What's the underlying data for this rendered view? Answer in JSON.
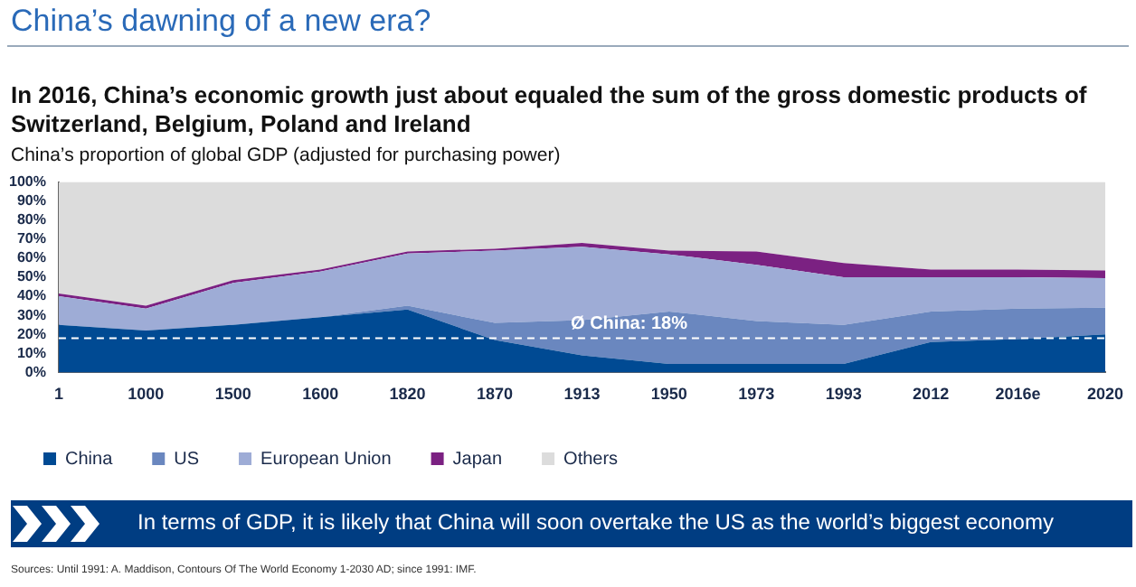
{
  "chart_data": {
    "type": "area",
    "title": "China’s dawning of a new era?",
    "subtitle": "In 2016, China’s economic growth just about equaled the sum of the gross domestic products of Switzerland, Belgium, Poland and Ireland",
    "ylabel": "China’s proportion of global GDP (adjusted for purchasing power)",
    "categories": [
      "1",
      "1000",
      "1500",
      "1600",
      "1820",
      "1870",
      "1913",
      "1950",
      "1973",
      "1993",
      "2012",
      "2016e",
      "2020"
    ],
    "stacked": true,
    "series": [
      {
        "name": "China",
        "color": "#004a93",
        "values": [
          25,
          22,
          25,
          29,
          33,
          17,
          9,
          4.5,
          4.5,
          4.5,
          16,
          17.5,
          20
        ]
      },
      {
        "name": "US",
        "color": "#6a87bf",
        "values": [
          0,
          0,
          0,
          0,
          2,
          9,
          18.5,
          27.5,
          22.5,
          20.5,
          16,
          16,
          14
        ]
      },
      {
        "name": "European Union",
        "color": "#9eacd6",
        "values": [
          15,
          11.5,
          22,
          24,
          27.5,
          38,
          38.5,
          30,
          29.5,
          25,
          18,
          16.5,
          15.5
        ]
      },
      {
        "name": "Japan",
        "color": "#7b2182",
        "values": [
          1.5,
          1.5,
          1.5,
          1,
          1,
          1,
          2,
          2,
          7,
          7.5,
          4,
          4,
          4
        ]
      },
      {
        "name": "Others",
        "color": "#dcdcdc",
        "values": [
          58.5,
          65,
          51.5,
          46,
          36.5,
          35,
          32,
          36,
          36.5,
          42.5,
          46,
          46,
          46.5
        ]
      }
    ],
    "ylim": [
      0,
      100
    ],
    "yticks": [
      {
        "value": 0,
        "label": "0%"
      },
      {
        "value": 10,
        "label": "10%"
      },
      {
        "value": 20,
        "label": "20%"
      },
      {
        "value": 30,
        "label": "30%"
      },
      {
        "value": 40,
        "label": "40%"
      },
      {
        "value": 50,
        "label": "50%"
      },
      {
        "value": 60,
        "label": "60%"
      },
      {
        "value": 70,
        "label": "70%"
      },
      {
        "value": 80,
        "label": "80%"
      },
      {
        "value": 90,
        "label": "90%"
      },
      {
        "value": 100,
        "label": "100%"
      }
    ],
    "ref_lines": [
      {
        "axis": "y",
        "value": 18,
        "label": "Ø China: 18%",
        "color": "#ffffff",
        "line_style": "dashed"
      }
    ],
    "grid": false,
    "legend": "bottom left",
    "annotations": [
      "In terms of GDP, it is likely that China will soon overtake the US as the world’s biggest economy",
      "Sources: Until 1991: A. Maddison, Contours Of The World Economy 1-2030 AD; since 1991: IMF."
    ]
  }
}
